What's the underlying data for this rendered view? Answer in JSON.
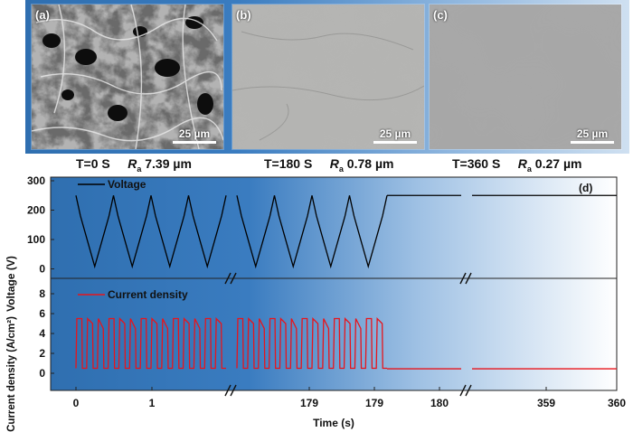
{
  "panels": [
    {
      "label": "(a)",
      "scale": "25 µm",
      "time": "T=0 S",
      "ra_symbol": "R",
      "ra_sub": "a",
      "ra_value": " 7.39 µm"
    },
    {
      "label": "(b)",
      "scale": "25 µm",
      "time": "T=180 S",
      "ra_symbol": "R",
      "ra_sub": "a",
      "ra_value": " 0.78 µm"
    },
    {
      "label": "(c)",
      "scale": "25 µm",
      "time": "T=360 S",
      "ra_symbol": "R",
      "ra_sub": "a",
      "ra_value": " 0.27 µm"
    }
  ],
  "chart_panel_label": "(d)",
  "chart_data": [
    {
      "type": "line",
      "ylabel": "Voltage (V)",
      "ylim": [
        -20,
        300
      ],
      "yticks": [
        0,
        100,
        200,
        300
      ],
      "series": [
        {
          "name": "Voltage",
          "color": "#000000"
        }
      ],
      "description_values": {
        "cycle_max": 250,
        "cycle_min": 8,
        "cycles_first_segment": 4,
        "cycles_second_segment": 4,
        "steady_value": 250
      }
    },
    {
      "type": "line",
      "ylabel": "Current density (A/cm²)",
      "ylim": [
        -1,
        9
      ],
      "yticks": [
        0,
        2,
        4,
        6,
        8
      ],
      "series": [
        {
          "name": "Current density",
          "color": "#e8141b"
        }
      ],
      "description_values": {
        "pulse_high": 5.5,
        "pulse_low": 0.5,
        "steady_value": 0.45
      }
    }
  ],
  "x_axis": {
    "label": "Time (s)",
    "ticks": [
      "0",
      "1",
      "179",
      "179",
      "180",
      "359",
      "360"
    ]
  },
  "colors": {
    "accent": "#2f6fb0",
    "voltage": "#000000",
    "current": "#e8141b"
  }
}
